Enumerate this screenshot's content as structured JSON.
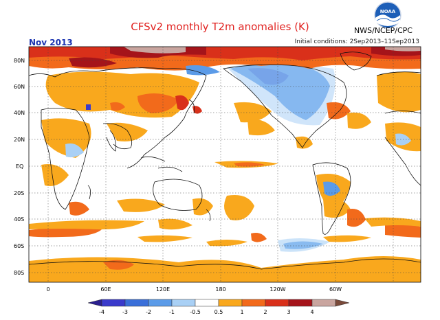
{
  "title": "CFSv2 monthly T2m anomalies (K)",
  "agency": "NWS/NCEP/CPC",
  "logo_text": "NOAA",
  "month_label": "Nov 2013",
  "initial_conditions": "Initial conditions: 2Sep2013–11Sep2013",
  "lat_labels": [
    "80N",
    "60N",
    "40N",
    "20N",
    "EQ",
    "20S",
    "40S",
    "60S",
    "80S"
  ],
  "lon_labels": [
    "0",
    "60E",
    "120E",
    "180",
    "120W",
    "60W"
  ],
  "colorbar": {
    "ticks": [
      "-4",
      "-3",
      "-2",
      "-1",
      "-0.5",
      "0.5",
      "1",
      "2",
      "3",
      "4"
    ],
    "colors": [
      "#2a1f8f",
      "#3a3acb",
      "#3a6fd9",
      "#5b9be8",
      "#a9d0f5",
      "#ffffff",
      "#f9a81d",
      "#f26a1b",
      "#d9301a",
      "#a5141a",
      "#c9a59f",
      "#7a4a3a"
    ]
  },
  "colors": {
    "orange": "#f9a81d",
    "dark_orange": "#f26a1b",
    "red": "#d9301a",
    "dark_red": "#a5141a",
    "light_blue": "#a9d0f5",
    "blue": "#5b9be8"
  }
}
